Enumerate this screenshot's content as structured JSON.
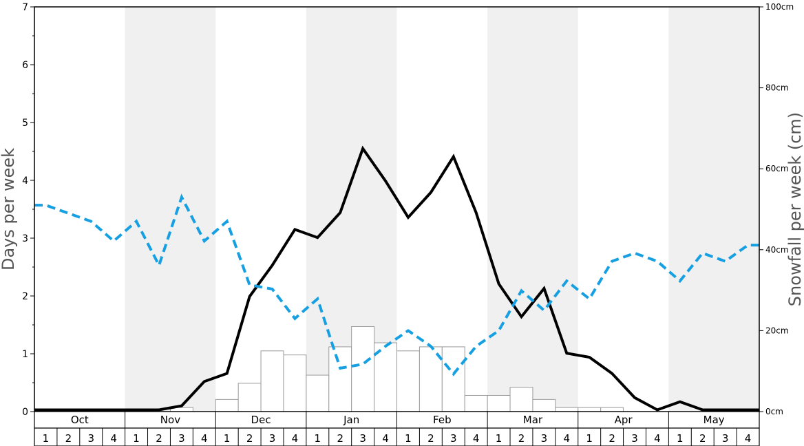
{
  "chart_data": {
    "type": "bar+line",
    "y_left": {
      "label": "Days per week",
      "ylim": [
        0,
        7
      ],
      "ticks": [
        "0",
        "1",
        "2",
        "3",
        "4",
        "5",
        "6",
        "7"
      ]
    },
    "y_right": {
      "label": "Snowfall per week (cm)",
      "ylim": [
        0,
        100
      ],
      "ticks": [
        "0cm",
        "20cm",
        "40cm",
        "60cm",
        "80cm",
        "100cm"
      ]
    },
    "months": [
      "Oct",
      "Nov",
      "Dec",
      "Jan",
      "Feb",
      "Mar",
      "Apr",
      "May"
    ],
    "weeks": [
      "1",
      "2",
      "3",
      "4"
    ],
    "grid": "alternating month shading",
    "colors": {
      "line_solid": "#000000",
      "line_dashed": "#16a0e2",
      "bar_fill": "#ffffff",
      "bar_stroke": "#9a9a9a",
      "shade": "#f0f0f0"
    },
    "series": [
      {
        "type": "bar",
        "axis": "right",
        "values": [
          0,
          0,
          0,
          0,
          0,
          0,
          1,
          0,
          3,
          7,
          15,
          14,
          9,
          16,
          21,
          17,
          15,
          16,
          16,
          4,
          4,
          6,
          3,
          1,
          1,
          1,
          0,
          0,
          0,
          0,
          0,
          0
        ]
      },
      {
        "type": "line",
        "style": "solid",
        "axis": "left",
        "values": [
          0.03,
          0.03,
          0.03,
          0.03,
          0.03,
          0.03,
          0.1,
          0.52,
          0.66,
          1.99,
          2.53,
          3.15,
          3.01,
          3.44,
          4.55,
          3.99,
          3.36,
          3.79,
          4.41,
          3.44,
          2.21,
          1.64,
          2.13,
          1.01,
          0.94,
          0.66,
          0.24,
          0.03,
          0.17,
          0.03,
          0.03,
          0.03
        ]
      },
      {
        "type": "line",
        "style": "dashed",
        "axis": "left",
        "values": [
          3.57,
          3.43,
          3.29,
          2.95,
          3.29,
          2.53,
          3.71,
          2.95,
          3.29,
          2.19,
          2.12,
          1.61,
          1.95,
          0.75,
          0.82,
          1.13,
          1.4,
          1.13,
          0.65,
          1.13,
          1.4,
          2.09,
          1.75,
          2.26,
          1.95,
          2.6,
          2.74,
          2.6,
          2.26,
          2.74,
          2.6,
          2.88
        ]
      }
    ]
  }
}
